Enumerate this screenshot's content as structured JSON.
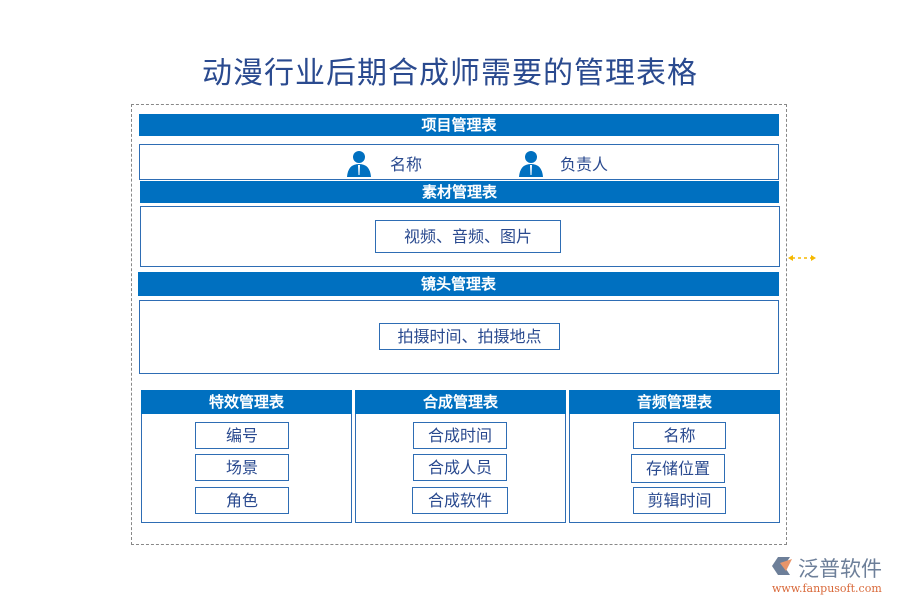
{
  "title": "动漫行业后期合成师需要的管理表格",
  "project": {
    "header": "项目管理表",
    "fields": [
      "名称",
      "负责人"
    ]
  },
  "material": {
    "header": "素材管理表",
    "content": "视频、音频、图片"
  },
  "shot": {
    "header": "镜头管理表",
    "content": "拍摄时间、拍摄地点"
  },
  "effects": {
    "header": "特效管理表",
    "items": [
      "编号",
      "场景",
      "角色"
    ]
  },
  "composite": {
    "header": "合成管理表",
    "items": [
      "合成时间",
      "合成人员",
      "合成软件"
    ]
  },
  "audio": {
    "header": "音频管理表",
    "items": [
      "名称",
      "存储位置",
      "剪辑时间"
    ]
  },
  "logo": {
    "name": "泛普软件",
    "url": "www.fanpusoft.com"
  },
  "colors": {
    "header": "#0070c0",
    "text": "#2a4a8f",
    "arrow": "#f5b800"
  }
}
